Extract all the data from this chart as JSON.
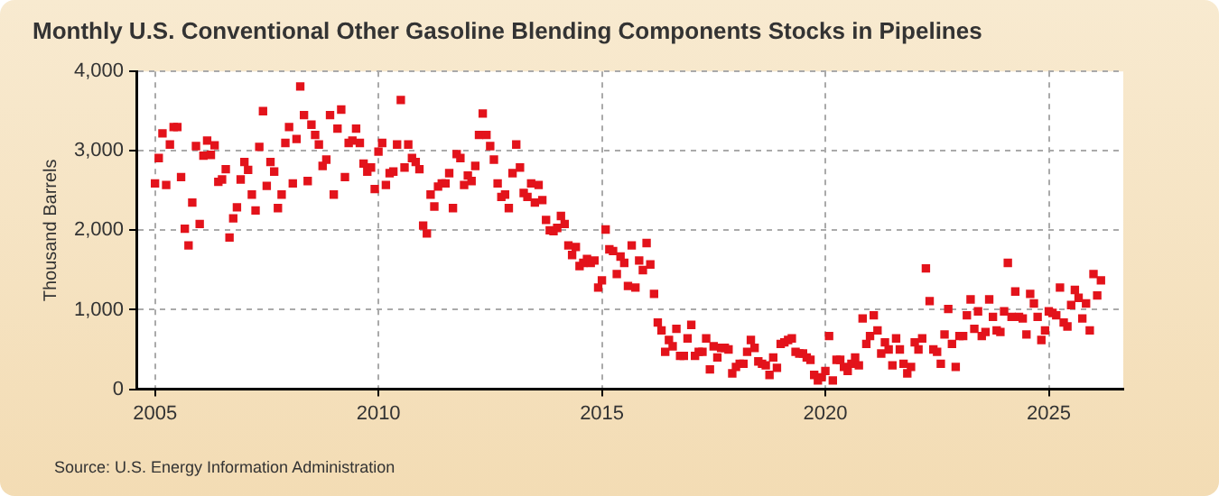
{
  "chart_data": {
    "type": "scatter",
    "title": "Monthly U.S. Conventional Other Gasoline Blending Components Stocks in Pipelines",
    "ylabel": "Thousand Barrels",
    "annotations": [
      "Source: U.S. Energy Information Administration"
    ],
    "x": [
      "2005-01",
      "2005-02",
      "2005-03",
      "2005-04",
      "2005-05",
      "2005-06",
      "2005-07",
      "2005-08",
      "2005-09",
      "2005-10",
      "2005-11",
      "2005-12",
      "2006-01",
      "2006-02",
      "2006-03",
      "2006-04",
      "2006-05",
      "2006-06",
      "2006-07",
      "2006-08",
      "2006-09",
      "2006-10",
      "2006-11",
      "2006-12",
      "2007-01",
      "2007-02",
      "2007-03",
      "2007-04",
      "2007-05",
      "2007-06",
      "2007-07",
      "2007-08",
      "2007-09",
      "2007-10",
      "2007-11",
      "2007-12",
      "2008-01",
      "2008-02",
      "2008-03",
      "2008-04",
      "2008-05",
      "2008-06",
      "2008-07",
      "2008-08",
      "2008-09",
      "2008-10",
      "2008-11",
      "2008-12",
      "2009-01",
      "2009-02",
      "2009-03",
      "2009-04",
      "2009-05",
      "2009-06",
      "2009-07",
      "2009-08",
      "2009-09",
      "2009-10",
      "2009-11",
      "2009-12",
      "2010-01",
      "2010-02",
      "2010-03",
      "2010-04",
      "2010-05",
      "2010-06",
      "2010-07",
      "2010-08",
      "2010-09",
      "2010-10",
      "2010-11",
      "2010-12",
      "2011-01",
      "2011-02",
      "2011-03",
      "2011-04",
      "2011-05",
      "2011-06",
      "2011-07",
      "2011-08",
      "2011-09",
      "2011-10",
      "2011-11",
      "2011-12",
      "2012-01",
      "2012-02",
      "2012-03",
      "2012-04",
      "2012-05",
      "2012-06",
      "2012-07",
      "2012-08",
      "2012-09",
      "2012-10",
      "2012-11",
      "2012-12",
      "2013-01",
      "2013-02",
      "2013-03",
      "2013-04",
      "2013-05",
      "2013-06",
      "2013-07",
      "2013-08",
      "2013-09",
      "2013-10",
      "2013-11",
      "2013-12",
      "2014-01",
      "2014-02",
      "2014-03",
      "2014-04",
      "2014-05",
      "2014-06",
      "2014-07",
      "2014-08",
      "2014-09",
      "2014-10",
      "2014-11",
      "2014-12",
      "2015-01",
      "2015-02",
      "2015-03",
      "2015-04",
      "2015-05",
      "2015-06",
      "2015-07",
      "2015-08",
      "2015-09",
      "2015-10",
      "2015-11",
      "2015-12",
      "2016-01",
      "2016-02",
      "2016-03",
      "2016-04",
      "2016-05",
      "2016-06",
      "2016-07",
      "2016-08",
      "2016-09",
      "2016-10",
      "2016-11",
      "2016-12",
      "2017-01",
      "2017-02",
      "2017-03",
      "2017-04",
      "2017-05",
      "2017-06",
      "2017-07",
      "2017-08",
      "2017-09",
      "2017-10",
      "2017-11",
      "2017-12",
      "2018-01",
      "2018-02",
      "2018-03",
      "2018-04",
      "2018-05",
      "2018-06",
      "2018-07",
      "2018-08",
      "2018-09",
      "2018-10",
      "2018-11",
      "2018-12",
      "2019-01",
      "2019-02",
      "2019-03",
      "2019-04",
      "2019-05",
      "2019-06",
      "2019-07",
      "2019-08",
      "2019-09",
      "2019-10",
      "2019-11",
      "2019-12",
      "2020-01",
      "2020-02",
      "2020-03",
      "2020-04",
      "2020-05",
      "2020-06",
      "2020-07",
      "2020-08",
      "2020-09",
      "2020-10",
      "2020-11",
      "2020-12",
      "2021-01",
      "2021-02",
      "2021-03",
      "2021-04",
      "2021-05",
      "2021-06",
      "2021-07",
      "2021-08",
      "2021-09",
      "2021-10",
      "2021-11",
      "2021-12",
      "2022-01",
      "2022-02",
      "2022-03",
      "2022-04",
      "2022-05",
      "2022-06",
      "2022-07",
      "2022-08",
      "2022-09",
      "2022-10",
      "2022-11",
      "2022-12",
      "2023-01",
      "2023-02",
      "2023-03",
      "2023-04",
      "2023-05",
      "2023-06",
      "2023-07",
      "2023-08",
      "2023-09",
      "2023-10",
      "2023-11",
      "2023-12",
      "2024-01",
      "2024-02",
      "2024-03",
      "2024-04",
      "2024-05",
      "2024-06",
      "2024-07",
      "2024-08",
      "2024-09",
      "2024-10",
      "2024-11",
      "2024-12",
      "2025-01",
      "2025-02",
      "2025-03",
      "2025-04",
      "2025-05",
      "2025-06",
      "2025-07",
      "2025-08",
      "2025-09",
      "2025-10",
      "2025-11",
      "2025-12",
      "2026-01",
      "2026-02",
      "2026-03"
    ],
    "series": [
      {
        "color": "#e3131b",
        "values": [
          2590,
          2910,
          3220,
          2570,
          3080,
          3300,
          3300,
          2670,
          2020,
          1810,
          2350,
          3060,
          2080,
          2940,
          3130,
          2950,
          3070,
          2610,
          2640,
          2770,
          1910,
          2150,
          2290,
          2640,
          2860,
          2760,
          2450,
          2250,
          3050,
          3500,
          2560,
          2860,
          2740,
          2280,
          2450,
          3100,
          3300,
          2590,
          3150,
          3810,
          3450,
          2620,
          3330,
          3200,
          3080,
          2810,
          2890,
          3450,
          2450,
          3280,
          3520,
          2670,
          3100,
          3130,
          3280,
          3100,
          2840,
          2740,
          2790,
          2520,
          2990,
          3100,
          2570,
          2720,
          2740,
          3080,
          3640,
          2790,
          3080,
          2910,
          2860,
          2770,
          2060,
          1960,
          2450,
          2300,
          2550,
          2590,
          2590,
          2720,
          2280,
          2960,
          2910,
          2570,
          2690,
          2620,
          2810,
          3200,
          3470,
          3200,
          3060,
          2890,
          2590,
          2420,
          2450,
          2280,
          2720,
          3080,
          2790,
          2470,
          2420,
          2590,
          2350,
          2570,
          2380,
          2130,
          2000,
          1990,
          2030,
          2180,
          2080,
          1810,
          1690,
          1790,
          1550,
          1590,
          1640,
          1590,
          1620,
          1280,
          1370,
          2010,
          1760,
          1740,
          1450,
          1670,
          1590,
          1300,
          1810,
          1280,
          1620,
          1500,
          1840,
          1570,
          1200,
          840,
          740,
          470,
          620,
          540,
          760,
          420,
          420,
          640,
          810,
          420,
          470,
          470,
          640,
          250,
          540,
          400,
          520,
          520,
          500,
          200,
          280,
          320,
          320,
          470,
          620,
          520,
          350,
          320,
          300,
          180,
          400,
          270,
          570,
          590,
          620,
          640,
          470,
          450,
          450,
          400,
          370,
          180,
          110,
          150,
          230,
          670,
          110,
          370,
          370,
          280,
          230,
          320,
          400,
          300,
          890,
          570,
          670,
          930,
          740,
          450,
          590,
          500,
          300,
          640,
          500,
          320,
          200,
          280,
          590,
          500,
          640,
          1520,
          1110,
          500,
          470,
          320,
          690,
          1010,
          570,
          280,
          670,
          670,
          930,
          1130,
          760,
          980,
          670,
          720,
          1130,
          910,
          740,
          720,
          980,
          1590,
          910,
          1230,
          910,
          890,
          690,
          1200,
          1080,
          910,
          620,
          740,
          980,
          960,
          930,
          1280,
          840,
          790,
          1060,
          1250,
          1150,
          890,
          1080,
          740,
          1450,
          1180,
          1370
        ]
      }
    ],
    "xlim": [
      "2004-08",
      "2026-09"
    ],
    "xticks": [
      "2005",
      "2010",
      "2015",
      "2020",
      "2025"
    ],
    "ylim": [
      0,
      4000
    ],
    "yticks": [
      0,
      {
        "value": 1000,
        "label": "1,000"
      },
      {
        "value": 2000,
        "label": "2,000"
      },
      {
        "value": 3000,
        "label": "3,000"
      },
      {
        "value": 4000,
        "label": "4,000"
      }
    ],
    "grid": true,
    "marker": "square"
  }
}
